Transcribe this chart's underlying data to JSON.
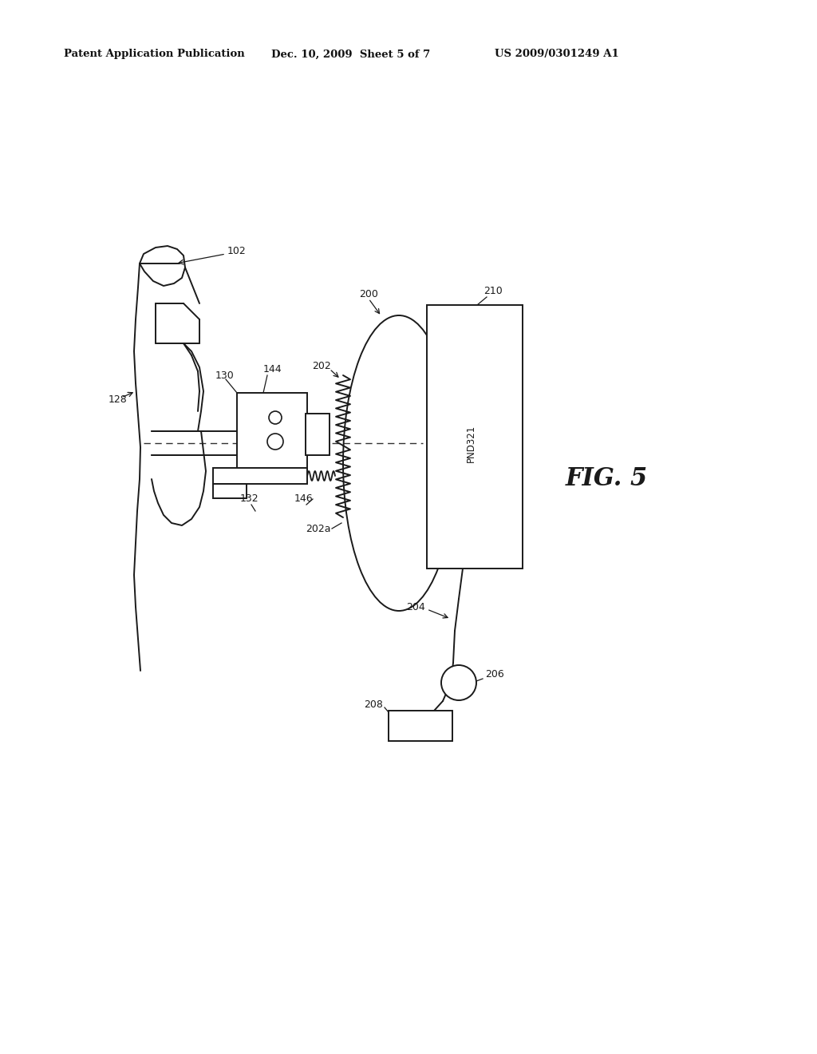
{
  "bg_color": "#ffffff",
  "line_color": "#1a1a1a",
  "header_text": "Patent Application Publication",
  "header_date": "Dec. 10, 2009  Sheet 5 of 7",
  "header_patent": "US 2009/0301249 A1",
  "fig_label": "FIG. 5"
}
